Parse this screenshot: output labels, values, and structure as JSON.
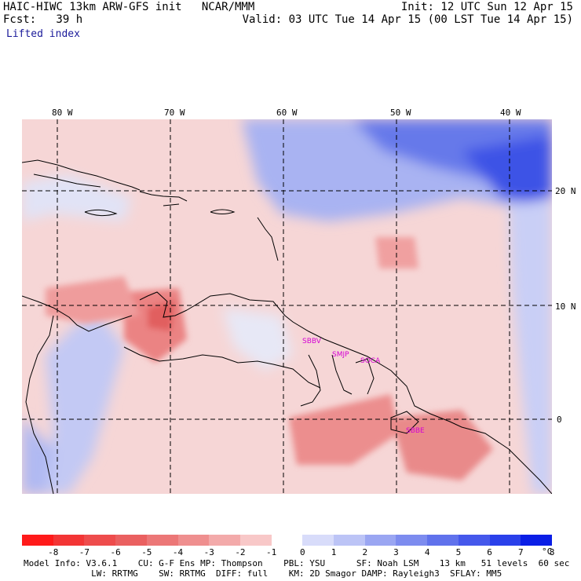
{
  "header": {
    "line1_left": "HAIC-HIWC 13km ARW-GFS init   NCAR/MMM",
    "line1_right": "Init: 12 UTC Sun 12 Apr 15",
    "line2_left": "Fcst:   39 h",
    "line2_right": "Valid: 03 UTC Tue 14 Apr 15 (00 LST Tue 14 Apr 15)",
    "field": "Lifted index"
  },
  "map": {
    "longitude_labels": [
      "80 W",
      "70 W",
      "60 W",
      "50 W",
      "40 W"
    ],
    "latitude_labels": [
      "20 N",
      "10 N",
      "0"
    ],
    "stations": [
      "SBBV",
      "SMJP",
      "SOCA",
      "SBBE"
    ],
    "station_color": "#d400d4",
    "coast_color": "#000000",
    "positive_color": "#3050e0",
    "negative_color": "#e03030"
  },
  "colorbar": {
    "colors": [
      "#ff1a1a",
      "#f33535",
      "#ee4c4c",
      "#ea6060",
      "#ec7777",
      "#ef8f8f",
      "#f3aaaa",
      "#f8c8c8",
      "#ffffff",
      "#d8dcfa",
      "#bcc4f6",
      "#9aa6f2",
      "#7d8cef",
      "#6072ec",
      "#4558eb",
      "#2a40ea",
      "#0a1ee6"
    ],
    "tick_labels": [
      "-8",
      "-7",
      "-6",
      "-5",
      "-4",
      "-3",
      "-2",
      "-1",
      "0",
      "1",
      "2",
      "3",
      "4",
      "5",
      "6",
      "7",
      "8"
    ],
    "unit": "°C"
  },
  "footer": {
    "line1": "Model Info: V3.6.1    CU: G-F Ens MP: Thompson    PBL: YSU      SF: Noah LSM    13 km   51 levels  60 sec",
    "line2": "             LW: RRTMG    SW: RRTMG  DIFF: full    KM: 2D Smagor DAMP: Rayleigh3  SFLAY: MM5"
  }
}
